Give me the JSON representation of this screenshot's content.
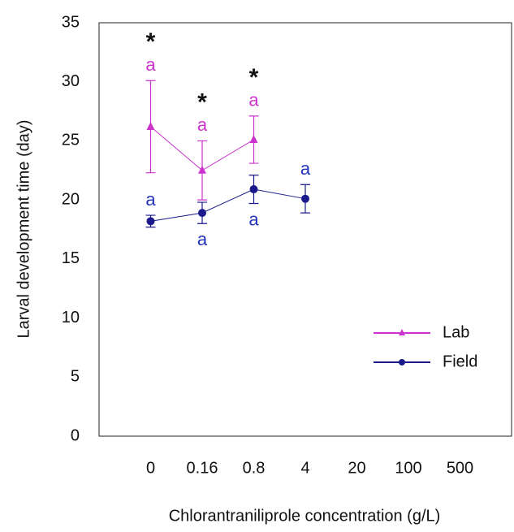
{
  "chart_data": {
    "type": "line",
    "x_label": "Chlorantraniliprole concentration (g/L)",
    "y_label": "Larval development time (day)",
    "categories": [
      "0",
      "0.16",
      "0.8",
      "4",
      "20",
      "100",
      "500"
    ],
    "ylim": [
      0,
      35
    ],
    "yticks": [
      0,
      5,
      10,
      15,
      20,
      25,
      30,
      35
    ],
    "legend": "lower right",
    "series": [
      {
        "name": "Lab",
        "color": "#cc33cc",
        "marker": "triangle",
        "values": [
          26.2,
          22.5,
          25.1,
          null,
          null,
          null,
          null
        ],
        "errors": [
          3.9,
          2.5,
          2.0,
          null,
          null,
          null,
          null
        ],
        "letters": [
          "a",
          "a",
          "a",
          null,
          null,
          null,
          null
        ],
        "letter_color": "#cc33cc"
      },
      {
        "name": "Field",
        "color": "#1a1a8c",
        "marker": "circle",
        "values": [
          18.2,
          18.9,
          20.9,
          20.1,
          null,
          null,
          null
        ],
        "errors": [
          0.5,
          0.9,
          1.2,
          1.2,
          null,
          null,
          null
        ],
        "letters": [
          "a",
          "a",
          "a",
          "a",
          null,
          null,
          null
        ],
        "letter_color": "#2233bb"
      }
    ],
    "significance": [
      "*",
      "*",
      "*",
      null,
      null,
      null,
      null
    ]
  }
}
